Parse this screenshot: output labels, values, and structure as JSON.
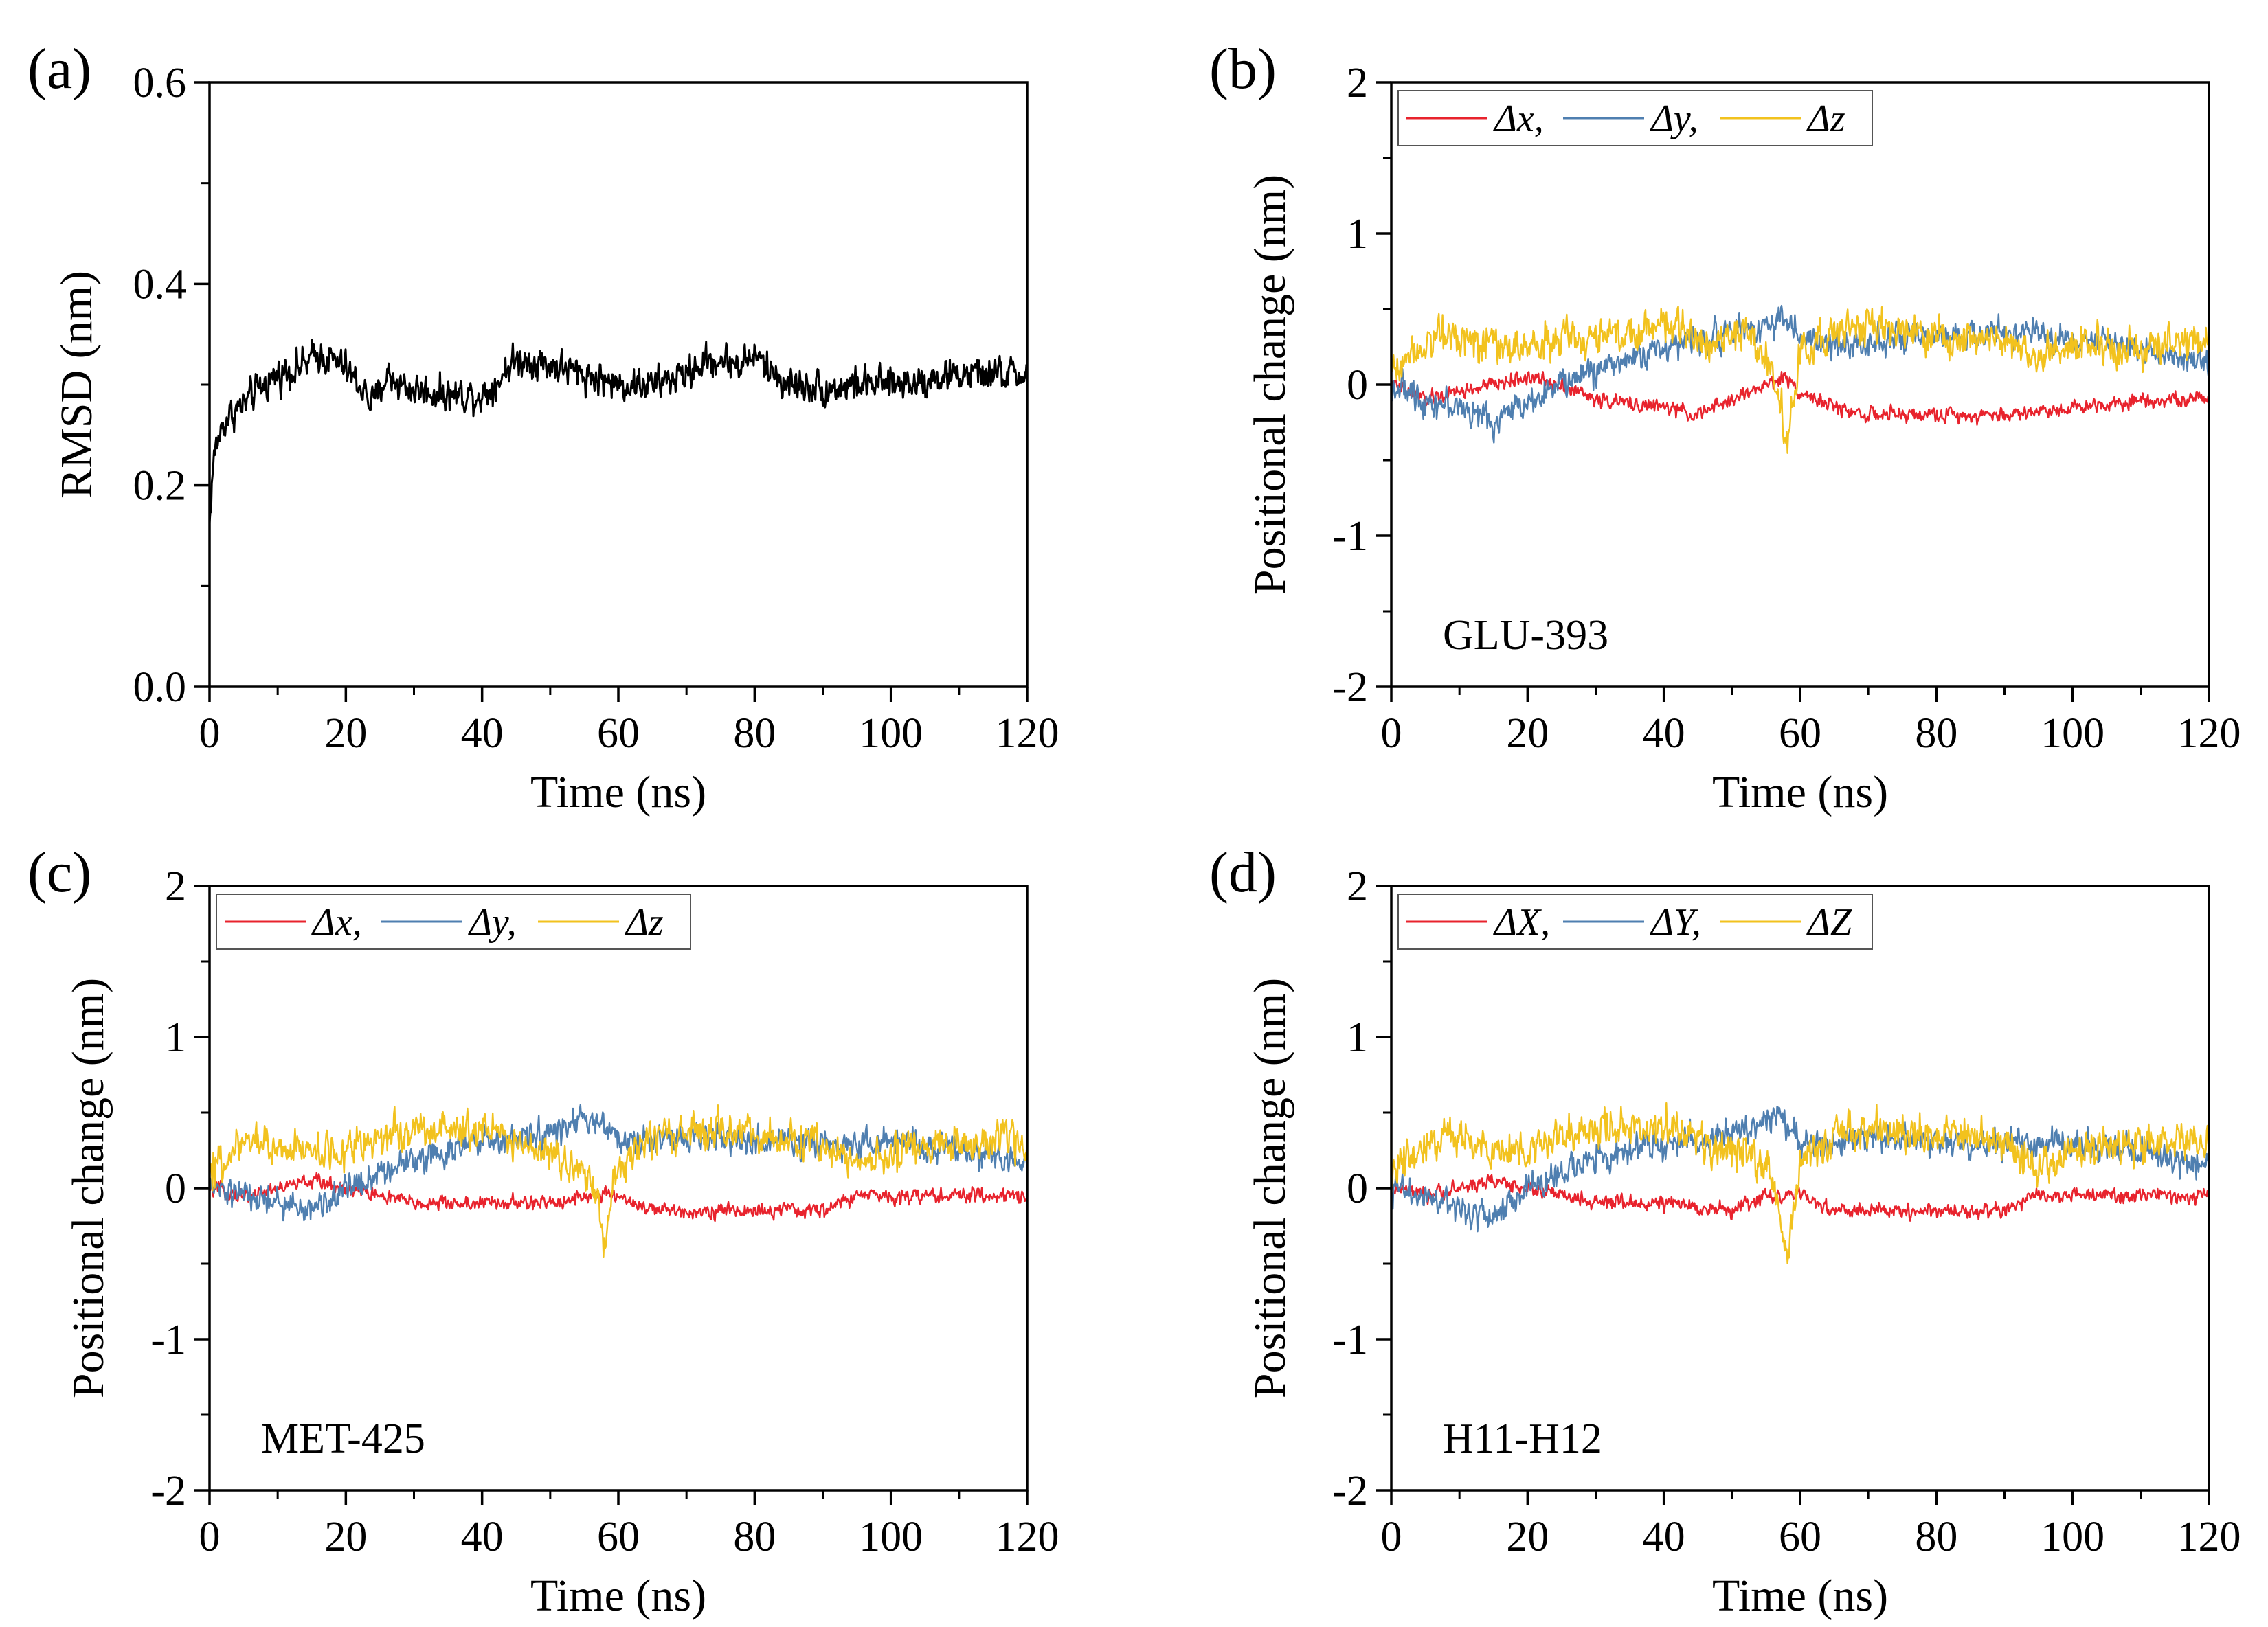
{
  "colors": {
    "x": "#e8232d",
    "y": "#4f7fb0",
    "z": "#f2c21e",
    "rmsd": "#000000"
  },
  "chart_data": [
    {
      "id": "a",
      "panel_label": "(a)",
      "type": "line",
      "xlabel": "Time (ns)",
      "ylabel": "RMSD (nm)",
      "xlim": [
        0,
        120
      ],
      "ylim": [
        0.0,
        0.6
      ],
      "xticks": [
        0,
        20,
        40,
        60,
        80,
        100,
        120
      ],
      "yticks": [
        0.0,
        0.2,
        0.4,
        0.6
      ],
      "ytick_labels": [
        "0.0",
        "0.2",
        "0.4",
        "0.6"
      ],
      "annotation": "",
      "legend": null,
      "series": [
        {
          "key": "rmsd",
          "color": "#000000",
          "noise": 0.012,
          "x": [
            0,
            0.5,
            1,
            2,
            3,
            5,
            8,
            10,
            12,
            14,
            16,
            18,
            20,
            22,
            24,
            26,
            28,
            30,
            35,
            40,
            42,
            44,
            46,
            50,
            55,
            60,
            65,
            70,
            72,
            75,
            78,
            80,
            82,
            85,
            88,
            90,
            95,
            100,
            105,
            110,
            115,
            120
          ],
          "y": [
            0.16,
            0.22,
            0.24,
            0.26,
            0.27,
            0.28,
            0.3,
            0.31,
            0.315,
            0.32,
            0.33,
            0.325,
            0.315,
            0.3,
            0.28,
            0.31,
            0.3,
            0.295,
            0.29,
            0.29,
            0.3,
            0.32,
            0.325,
            0.32,
            0.31,
            0.3,
            0.3,
            0.31,
            0.32,
            0.325,
            0.32,
            0.33,
            0.315,
            0.3,
            0.3,
            0.295,
            0.3,
            0.3,
            0.305,
            0.31,
            0.31,
            0.31
          ]
        }
      ]
    },
    {
      "id": "b",
      "panel_label": "(b)",
      "type": "line",
      "xlabel": "Time (ns)",
      "ylabel": "Positional change (nm)",
      "xlim": [
        0,
        120
      ],
      "ylim": [
        -2,
        2
      ],
      "xticks": [
        0,
        20,
        40,
        60,
        80,
        100,
        120
      ],
      "yticks": [
        -2,
        -1,
        0,
        1,
        2
      ],
      "ytick_labels": [
        "-2",
        "-1",
        "0",
        "1",
        "2"
      ],
      "annotation": "GLU-393",
      "legend": [
        "Δx,",
        "Δy,",
        "Δz"
      ],
      "series": [
        {
          "key": "x",
          "color": "#e8232d",
          "noise": 0.035,
          "x": [
            0,
            5,
            10,
            15,
            20,
            25,
            30,
            40,
            45,
            50,
            55,
            58,
            60,
            65,
            70,
            80,
            90,
            100,
            110,
            120
          ],
          "y": [
            0.0,
            -0.1,
            -0.05,
            0.0,
            0.05,
            0.0,
            -0.1,
            -0.15,
            -0.2,
            -0.1,
            0.0,
            0.05,
            -0.05,
            -0.15,
            -0.2,
            -0.2,
            -0.2,
            -0.15,
            -0.1,
            -0.1
          ]
        },
        {
          "key": "y",
          "color": "#4f7fb0",
          "noise": 0.07,
          "x": [
            0,
            5,
            10,
            15,
            20,
            25,
            30,
            40,
            50,
            55,
            58,
            60,
            65,
            70,
            80,
            90,
            100,
            110,
            120
          ],
          "y": [
            0.0,
            -0.1,
            -0.15,
            -0.25,
            -0.1,
            0.0,
            0.1,
            0.25,
            0.35,
            0.4,
            0.45,
            0.3,
            0.25,
            0.3,
            0.3,
            0.35,
            0.3,
            0.25,
            0.15
          ]
        },
        {
          "key": "z",
          "color": "#f2c21e",
          "noise": 0.09,
          "x": [
            0,
            5,
            10,
            15,
            20,
            25,
            30,
            35,
            40,
            45,
            50,
            55,
            57,
            58,
            60,
            65,
            70,
            80,
            90,
            95,
            100,
            110,
            120
          ],
          "y": [
            0.1,
            0.3,
            0.35,
            0.25,
            0.25,
            0.3,
            0.3,
            0.35,
            0.4,
            0.3,
            0.35,
            0.2,
            -0.1,
            -0.4,
            0.2,
            0.35,
            0.4,
            0.3,
            0.3,
            0.2,
            0.25,
            0.25,
            0.3
          ]
        }
      ]
    },
    {
      "id": "c",
      "panel_label": "(c)",
      "type": "line",
      "xlabel": "Time (ns)",
      "ylabel": "Positional change (nm)",
      "xlim": [
        0,
        120
      ],
      "ylim": [
        -2,
        2
      ],
      "xticks": [
        0,
        20,
        40,
        60,
        80,
        100,
        120
      ],
      "yticks": [
        -2,
        -1,
        0,
        1,
        2
      ],
      "ytick_labels": [
        "-2",
        "-1",
        "0",
        "1",
        "2"
      ],
      "annotation": "MET-425",
      "legend": [
        "Δx,",
        "Δy,",
        "Δz"
      ],
      "series": [
        {
          "key": "x",
          "color": "#e8232d",
          "noise": 0.035,
          "x": [
            0,
            5,
            10,
            15,
            20,
            25,
            30,
            40,
            50,
            55,
            60,
            65,
            70,
            80,
            90,
            95,
            100,
            110,
            120
          ],
          "y": [
            0.0,
            -0.05,
            0.0,
            0.05,
            0.0,
            -0.05,
            -0.1,
            -0.1,
            -0.1,
            -0.05,
            -0.05,
            -0.15,
            -0.15,
            -0.15,
            -0.15,
            -0.05,
            -0.05,
            -0.05,
            -0.05
          ]
        },
        {
          "key": "y",
          "color": "#4f7fb0",
          "noise": 0.07,
          "x": [
            0,
            5,
            10,
            15,
            20,
            25,
            30,
            40,
            50,
            55,
            57,
            60,
            65,
            70,
            80,
            90,
            100,
            110,
            120
          ],
          "y": [
            0.0,
            -0.05,
            -0.1,
            -0.15,
            0.0,
            0.1,
            0.2,
            0.3,
            0.35,
            0.45,
            0.45,
            0.3,
            0.3,
            0.35,
            0.3,
            0.3,
            0.3,
            0.25,
            0.15
          ]
        },
        {
          "key": "z",
          "color": "#f2c21e",
          "noise": 0.09,
          "x": [
            0,
            5,
            10,
            15,
            20,
            25,
            30,
            40,
            45,
            50,
            55,
            57,
            58,
            60,
            65,
            70,
            80,
            90,
            95,
            100,
            110,
            120
          ],
          "y": [
            0.1,
            0.3,
            0.3,
            0.25,
            0.25,
            0.35,
            0.4,
            0.4,
            0.3,
            0.2,
            0.1,
            -0.1,
            -0.35,
            0.15,
            0.35,
            0.4,
            0.35,
            0.3,
            0.15,
            0.25,
            0.3,
            0.3
          ]
        }
      ]
    },
    {
      "id": "d",
      "panel_label": "(d)",
      "type": "line",
      "xlabel": "Time (ns)",
      "ylabel": "Positional change (nm)",
      "xlim": [
        0,
        120
      ],
      "ylim": [
        -2,
        2
      ],
      "xticks": [
        0,
        20,
        40,
        60,
        80,
        100,
        120
      ],
      "yticks": [
        -2,
        -1,
        0,
        1,
        2
      ],
      "ytick_labels": [
        "-2",
        "-1",
        "0",
        "1",
        "2"
      ],
      "annotation": "H11-H12",
      "legend": [
        "ΔX,",
        "ΔY,",
        "ΔZ"
      ],
      "series": [
        {
          "key": "x",
          "color": "#e8232d",
          "noise": 0.035,
          "x": [
            0,
            5,
            10,
            15,
            20,
            25,
            30,
            40,
            50,
            55,
            60,
            65,
            70,
            80,
            90,
            95,
            100,
            110,
            120
          ],
          "y": [
            0.0,
            -0.05,
            0.0,
            0.05,
            0.0,
            -0.05,
            -0.1,
            -0.1,
            -0.15,
            -0.05,
            -0.05,
            -0.15,
            -0.15,
            -0.15,
            -0.15,
            -0.05,
            -0.05,
            -0.05,
            -0.05
          ]
        },
        {
          "key": "y",
          "color": "#4f7fb0",
          "noise": 0.07,
          "x": [
            0,
            5,
            10,
            15,
            20,
            25,
            30,
            40,
            50,
            55,
            57,
            60,
            65,
            70,
            80,
            90,
            100,
            110,
            120
          ],
          "y": [
            0.0,
            -0.05,
            -0.15,
            -0.2,
            0.0,
            0.1,
            0.2,
            0.3,
            0.35,
            0.45,
            0.5,
            0.3,
            0.3,
            0.35,
            0.3,
            0.3,
            0.3,
            0.25,
            0.15
          ]
        },
        {
          "key": "z",
          "color": "#f2c21e",
          "noise": 0.09,
          "x": [
            0,
            5,
            10,
            15,
            20,
            25,
            30,
            40,
            45,
            50,
            55,
            57,
            58,
            60,
            65,
            70,
            80,
            90,
            95,
            100,
            110,
            120
          ],
          "y": [
            0.1,
            0.3,
            0.35,
            0.25,
            0.25,
            0.35,
            0.4,
            0.4,
            0.3,
            0.25,
            0.15,
            -0.1,
            -0.45,
            0.15,
            0.35,
            0.4,
            0.35,
            0.3,
            0.15,
            0.25,
            0.3,
            0.3
          ]
        }
      ]
    }
  ]
}
